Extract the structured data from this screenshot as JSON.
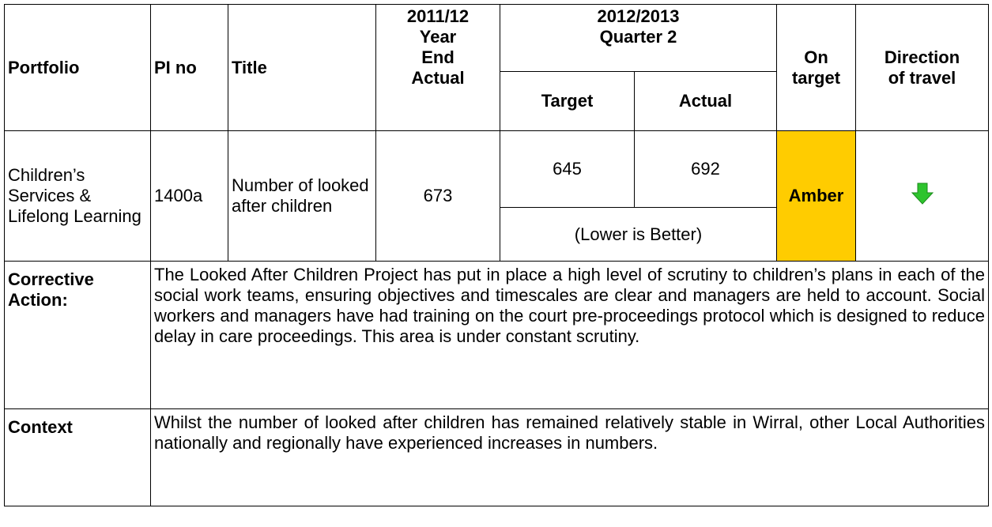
{
  "header": {
    "portfolio": "Portfolio",
    "pi_no": "PI no",
    "title": "Title",
    "year_end": [
      "2011/12",
      "Year",
      "End",
      "Actual"
    ],
    "quarter": [
      "2012/2013",
      "Quarter 2"
    ],
    "target": "Target",
    "actual": "Actual",
    "on_target": [
      "On",
      "target"
    ],
    "direction": [
      "Direction",
      "of travel"
    ]
  },
  "row": {
    "portfolio": "Children’s Services & Lifelong Learning",
    "pi_no": "1400a",
    "title": "Number of looked after children",
    "year_end_actual": 673,
    "target": 645,
    "actual": 692,
    "note": "(Lower is Better)",
    "on_target": "Amber"
  },
  "corrective_action": {
    "label": "Corrective Action:",
    "text": "The Looked After Children Project has put in place a high level of scrutiny to children’s plans in each of the social work teams, ensuring objectives and timescales are clear and managers are held to account. Social workers and managers have had training on the court pre-proceedings protocol which is designed to reduce delay in care proceedings. This area is under constant scrutiny."
  },
  "context": {
    "label": "Context",
    "text": "Whilst the number of looked after children has remained relatively stable in Wirral, other Local Authorities nationally and regionally have experienced increases in numbers."
  }
}
